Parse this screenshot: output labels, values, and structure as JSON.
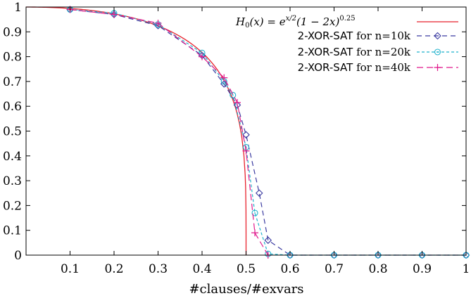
{
  "chart_data": {
    "type": "line",
    "xlabel": "#clauses/#exvars",
    "ylabel": "",
    "xlim": [
      0,
      1
    ],
    "ylim": [
      0,
      1
    ],
    "x_ticks": [
      0.1,
      0.2,
      0.3,
      0.4,
      0.5,
      0.6,
      0.7,
      0.8,
      0.9,
      1
    ],
    "x_tick_labels": [
      "0.1",
      "0.2",
      "0.3",
      "0.4",
      "0.5",
      "0.6",
      "0.7",
      "0.8",
      "0.9",
      "1"
    ],
    "y_ticks": [
      0,
      0.1,
      0.2,
      0.3,
      0.4,
      0.5,
      0.6,
      0.7,
      0.8,
      0.9,
      1
    ],
    "y_tick_labels": [
      "0",
      "0.1",
      "0.2",
      "0.3",
      "0.4",
      "0.5",
      "0.6",
      "0.7",
      "0.8",
      "0.9",
      "1"
    ],
    "grid": false,
    "legend_position": "top-right",
    "legend": {
      "formula_lhs": "H",
      "formula_sub": "0",
      "formula_mid": "(x) = e",
      "formula_exp1": "x/2",
      "formula_rest": "(1 − 2x)",
      "formula_exp2": "0.25",
      "label_10k_a": "2-XOR-SAT",
      "label_10k_b": " for n=10k",
      "label_20k_a": "2-XOR-SAT",
      "label_20k_b": " for n=20k",
      "label_40k_a": "2-XOR-SAT",
      "label_40k_b": " for n=40k"
    },
    "series": [
      {
        "name": "H0(x) = e^{x/2}(1 − 2x)^{0.25}",
        "kind": "function",
        "color": "#e8212c",
        "dash": "solid"
      },
      {
        "name": "2-XOR-SAT for n=10k",
        "color": "#3a3aa0",
        "marker": "diamond",
        "dash": "7,5",
        "x": [
          0.1,
          0.2,
          0.3,
          0.4,
          0.45,
          0.48,
          0.5,
          0.53,
          0.55,
          0.6,
          0.7,
          0.8,
          0.9,
          1.0
        ],
        "y": [
          0.99,
          0.97,
          0.925,
          0.805,
          0.69,
          0.605,
          0.485,
          0.25,
          0.06,
          0.0,
          0.0,
          0.0,
          0.0,
          0.0
        ]
      },
      {
        "name": "2-XOR-SAT for n=20k",
        "color": "#1fb2cc",
        "marker": "circle",
        "dash": "4,3",
        "x": [
          0.1,
          0.2,
          0.3,
          0.4,
          0.45,
          0.47,
          0.5,
          0.52,
          0.55,
          0.6,
          0.7,
          0.8,
          0.9,
          1.0
        ],
        "y": [
          0.99,
          0.975,
          0.93,
          0.815,
          0.7,
          0.645,
          0.435,
          0.17,
          0.005,
          0.0,
          0.0,
          0.0,
          0.0,
          0.0
        ]
      },
      {
        "name": "2-XOR-SAT for n=40k",
        "color": "#e0198c",
        "marker": "plus",
        "dash": "9,5",
        "x": [
          0.1,
          0.2,
          0.3,
          0.4,
          0.45,
          0.48,
          0.5,
          0.52,
          0.55
        ],
        "y": [
          0.99,
          0.97,
          0.935,
          0.8,
          0.715,
          0.615,
          0.42,
          0.09,
          0.0
        ]
      }
    ]
  },
  "colors": {
    "axis": "#000000",
    "function": "#e8212c",
    "n10k": "#3a3aa0",
    "n20k": "#1fb2cc",
    "n40k": "#e0198c"
  }
}
